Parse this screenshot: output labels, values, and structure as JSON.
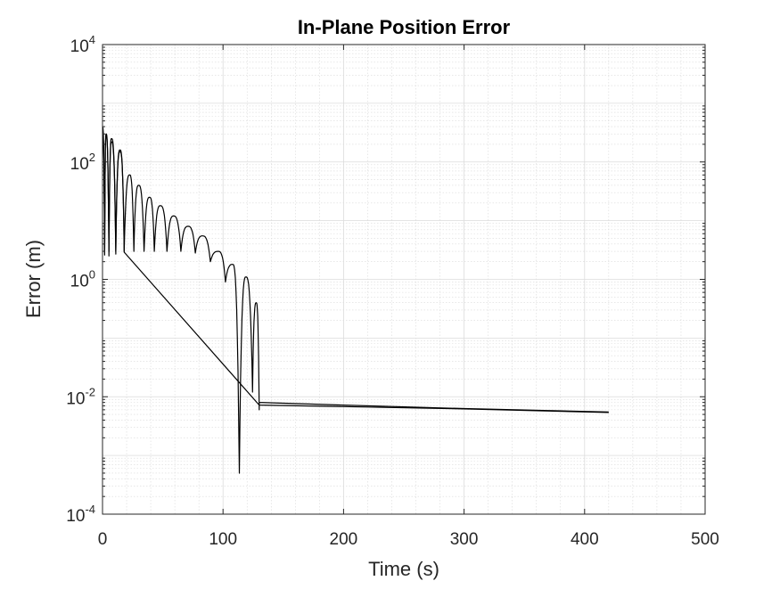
{
  "chart_data": {
    "type": "line",
    "title": "In-Plane Position Error",
    "xlabel": "Time (s)",
    "ylabel": "Error (m)",
    "xlim": [
      0,
      500
    ],
    "ylim": [
      0.0001,
      10000
    ],
    "yscale": "log",
    "grid": true,
    "minor_grid": true,
    "line_color": "#000000",
    "x_ticks": [
      {
        "value": 0,
        "label": "0"
      },
      {
        "value": 100,
        "label": "100"
      },
      {
        "value": 200,
        "label": "200"
      },
      {
        "value": 300,
        "label": "300"
      },
      {
        "value": 400,
        "label": "400"
      },
      {
        "value": 500,
        "label": "500"
      }
    ],
    "y_ticks": [
      {
        "value": 0.0001,
        "base": "10",
        "exp": "-4"
      },
      {
        "value": 0.01,
        "base": "10",
        "exp": "-2"
      },
      {
        "value": 1,
        "base": "10",
        "exp": "0"
      },
      {
        "value": 100,
        "base": "10",
        "exp": "2"
      },
      {
        "value": 10000,
        "base": "10",
        "exp": "4"
      }
    ],
    "series": [
      {
        "peaks": [
          [
            0,
            400
          ],
          [
            3,
            300
          ],
          [
            7.5,
            250
          ],
          [
            14.5,
            160
          ],
          [
            22.5,
            60
          ],
          [
            30,
            40
          ],
          [
            39,
            25
          ],
          [
            48,
            18
          ],
          [
            59,
            12
          ],
          [
            71,
            8
          ],
          [
            83,
            5.5
          ],
          [
            96,
            3.0
          ],
          [
            108,
            1.8
          ],
          [
            119,
            1.1
          ],
          [
            127.5,
            0.4
          ]
        ],
        "troughs": [
          [
            1.8,
            3
          ],
          [
            5.3,
            3
          ],
          [
            11,
            3
          ],
          [
            18,
            3
          ],
          [
            26,
            3
          ],
          [
            34.5,
            3
          ],
          [
            43,
            3
          ],
          [
            53.5,
            3
          ],
          [
            65,
            3
          ],
          [
            77,
            2.8
          ],
          [
            89.5,
            2.0
          ],
          [
            102,
            0.9
          ],
          [
            113.5,
            0.0005
          ],
          [
            124.5,
            0.012
          ],
          [
            130,
            0.006
          ]
        ],
        "tail": [
          [
            130,
            0.008
          ],
          [
            200,
            0.0072
          ],
          [
            300,
            0.0063
          ],
          [
            420,
            0.0055
          ]
        ]
      },
      {
        "peaks": [
          [
            0,
            300
          ],
          [
            3,
            280
          ],
          [
            7.5,
            220
          ],
          [
            14.5,
            150
          ]
        ],
        "troughs": [
          [
            1.8,
            2.6
          ],
          [
            5.3,
            2.5
          ],
          [
            11,
            2.7
          ],
          [
            18,
            2.9
          ]
        ],
        "tail": [
          [
            130,
            0.0072
          ],
          [
            200,
            0.0068
          ],
          [
            300,
            0.0062
          ],
          [
            420,
            0.0054
          ]
        ]
      }
    ]
  }
}
